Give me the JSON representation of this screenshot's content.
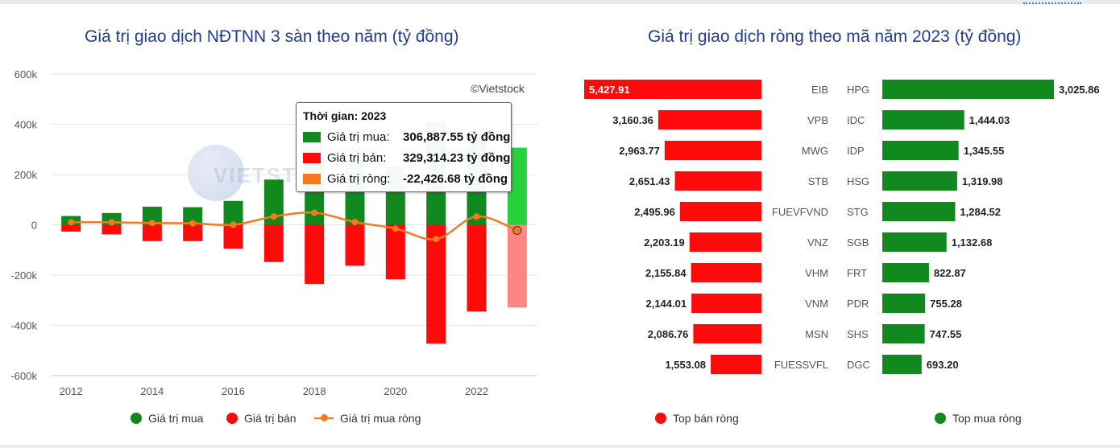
{
  "left_chart": {
    "title": "Giá trị giao dịch NĐTNN 3 sàn theo năm (tỷ đồng)",
    "credit": "©Vietstock",
    "watermark": "VIETSTOCK",
    "legend": {
      "buy": "Giá trị mua",
      "sell": "Giá trị bán",
      "net": "Giá trị mua ròng"
    },
    "tooltip": {
      "header": "Thời gian: 2023",
      "rows": [
        {
          "label": "Giá trị mua:",
          "value": "306,887.55 tỷ đồng"
        },
        {
          "label": "Giá trị bán:",
          "value": "329,314.23 tỷ đồng"
        },
        {
          "label": "Giá trị ròng:",
          "value": "-22,426.68 tỷ đồng"
        }
      ]
    }
  },
  "right_chart": {
    "title": "Giá trị giao dịch ròng theo mã năm 2023 (tỷ đồng)",
    "legend": {
      "sell": "Top bán ròng",
      "buy": "Top mua ròng"
    }
  },
  "colors": {
    "buy": "#12891e",
    "sell": "#ff0a0a",
    "net": "#f47a1f",
    "buy_highlight": "#27d13a",
    "sell_highlight": "#ff8585",
    "grid": "#e6e6e6",
    "axis": "#c9cbe6"
  },
  "chart_data": [
    {
      "type": "bar",
      "title": "Giá trị giao dịch NĐTNN 3 sàn theo năm (tỷ đồng)",
      "categories": [
        2012,
        2013,
        2014,
        2015,
        2016,
        2017,
        2018,
        2019,
        2020,
        2021,
        2022,
        2023
      ],
      "x_tick_labels": [
        "2012",
        "2014",
        "2016",
        "2018",
        "2020",
        "2022"
      ],
      "y_tick_labels": [
        "600k",
        "400k",
        "200k",
        "0",
        "-200k",
        "-400k",
        "-600k"
      ],
      "ylim": [
        -600000,
        600000
      ],
      "series": [
        {
          "name": "Giá trị mua",
          "type": "bar",
          "values": [
            35000,
            47000,
            72000,
            70000,
            95000,
            180000,
            305000,
            260000,
            230000,
            408000,
            355000,
            306887.55
          ]
        },
        {
          "name": "Giá trị bán",
          "type": "bar",
          "values": [
            -27000,
            -38000,
            -65000,
            -65000,
            -95000,
            -148000,
            -235000,
            -163000,
            -217000,
            -473000,
            -345000,
            -329314.23
          ]
        },
        {
          "name": "Giá trị mua ròng",
          "type": "line",
          "values": [
            10000,
            10000,
            7000,
            6000,
            0,
            33000,
            48000,
            11000,
            -15000,
            -57000,
            33000,
            -22426.68
          ]
        }
      ],
      "highlighted_category": 2023,
      "legend_position": "bottom",
      "grid": true
    },
    {
      "type": "bar",
      "title": "Giá trị giao dịch ròng theo mã năm 2023 (tỷ đồng)",
      "orientation": "horizontal",
      "series": [
        {
          "name": "Top bán ròng",
          "codes": [
            "EIB",
            "VPB",
            "MWG",
            "STB",
            "FUEVFVND",
            "VNZ",
            "VHM",
            "VNM",
            "MSN",
            "FUESSVFL"
          ],
          "values": [
            5427.91,
            3160.36,
            2963.77,
            2651.43,
            2495.96,
            2203.19,
            2155.84,
            2144.01,
            2086.76,
            1553.08
          ],
          "labels": [
            "5,427.91",
            "3,160.36",
            "2,963.77",
            "2,651.43",
            "2,495.96",
            "2,203.19",
            "2,155.84",
            "2,144.01",
            "2,086.76",
            "1,553.08"
          ]
        },
        {
          "name": "Top mua ròng",
          "codes": [
            "HPG",
            "IDC",
            "IDP",
            "HSG",
            "STG",
            "SGB",
            "FRT",
            "PDR",
            "SHS",
            "DGC"
          ],
          "values": [
            3025.86,
            1444.03,
            1345.55,
            1319.98,
            1284.52,
            1132.68,
            822.87,
            755.28,
            747.55,
            693.2
          ],
          "labels": [
            "3,025.86",
            "1,444.03",
            "1,345.55",
            "1,319.98",
            "1,284.52",
            "1,132.68",
            "822.87",
            "755.28",
            "747.55",
            "693.20"
          ]
        }
      ],
      "legend_position": "bottom"
    }
  ]
}
